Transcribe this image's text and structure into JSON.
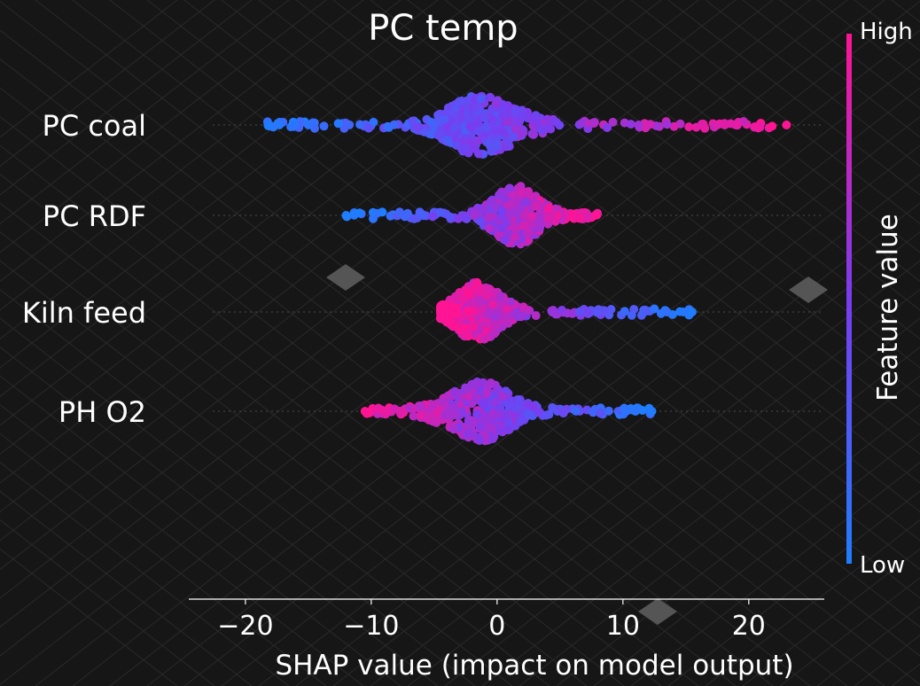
{
  "chart_data": {
    "type": "scatter",
    "subtype": "shap-beeswarm",
    "title": "PC temp",
    "xlabel": "SHAP value (impact on model output)",
    "xlim": [
      -24.5,
      26
    ],
    "xticks": [
      -20,
      -10,
      0,
      10,
      20
    ],
    "xtick_labels": [
      "−20",
      "−10",
      "0",
      "10",
      "20"
    ],
    "background": "#161616",
    "colorbar": {
      "label": "Feature value",
      "high_label": "High",
      "low_label": "Low",
      "low_color": "#1f7dff",
      "mid_color": "#7a3cf0",
      "high_color": "#ff1493"
    },
    "features": [
      {
        "name": "PC coal",
        "range": [
          -18.5,
          23
        ],
        "bulk": [
          -5,
          3
        ],
        "peak": -1.5,
        "color_trend": "low-to-high",
        "outliers": [
          -18.2,
          -17.3,
          -16.1,
          -15.0,
          17.5,
          18.1,
          19.1,
          23.0
        ]
      },
      {
        "name": "PC RDF",
        "range": [
          -12,
          8
        ],
        "bulk": [
          -1,
          4
        ],
        "peak": 1.5,
        "color_trend": "low-to-high",
        "outliers": [
          -12.0,
          7.8
        ]
      },
      {
        "name": "Kiln feed",
        "range": [
          -4.5,
          15.5
        ],
        "bulk": [
          -4,
          1
        ],
        "peak": -1.5,
        "color_trend": "high-to-low",
        "outliers": [
          13.5,
          14.8,
          15.5
        ]
      },
      {
        "name": "PH O2",
        "range": [
          -10.5,
          12.5
        ],
        "bulk": [
          -5,
          2
        ],
        "peak": -1,
        "color_trend": "high-to-low",
        "outliers": [
          -10.5,
          -8.7,
          11.0,
          12.3
        ]
      }
    ]
  }
}
